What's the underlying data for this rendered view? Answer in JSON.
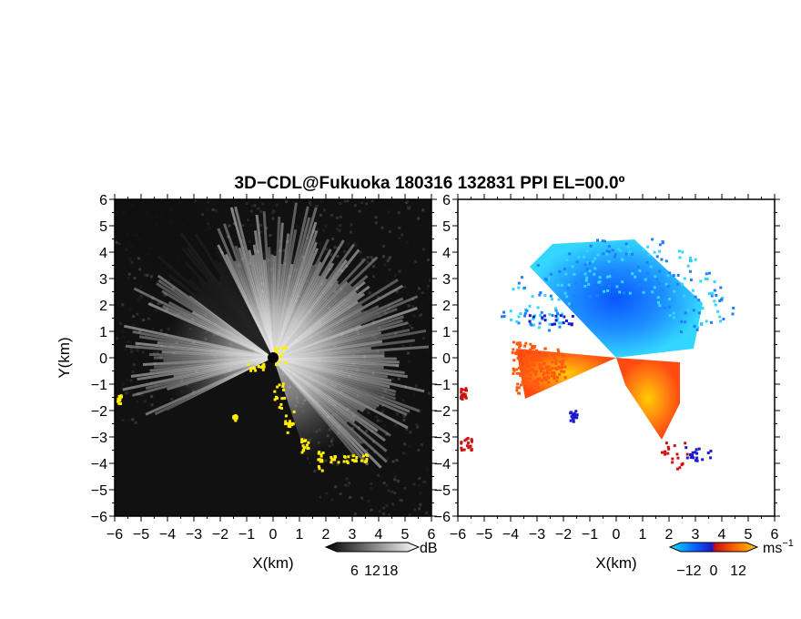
{
  "title": "3D−CDL@Fukuoka 180316 132831 PPI EL=00.0º",
  "chart_data": [
    {
      "type": "heatmap",
      "panel": "reflectivity",
      "xlabel": "X(km)",
      "ylabel": "Y(km)",
      "xlim": [
        -6,
        6
      ],
      "ylim": [
        -6,
        6
      ],
      "x_ticks": [
        "−6",
        "−5",
        "−4",
        "−3",
        "−2",
        "−1",
        "0",
        "1",
        "2",
        "3",
        "4",
        "5",
        "6"
      ],
      "y_ticks": [
        "6",
        "5",
        "4",
        "3",
        "2",
        "1",
        "0",
        "−1",
        "−2",
        "−3",
        "−4",
        "−5",
        "−6"
      ],
      "colorbar": {
        "label": "dB",
        "ticks": [
          "6",
          "12",
          "18"
        ],
        "tick_values": [
          6,
          12,
          18
        ],
        "range": [
          0,
          24
        ],
        "colors": [
          "#000000",
          "#ffffff"
        ]
      },
      "background_color": "#111111",
      "clutter_color": "#ffee00"
    },
    {
      "type": "heatmap",
      "panel": "doppler_velocity",
      "xlabel": "X(km)",
      "xlim": [
        -6,
        6
      ],
      "ylim": [
        -6,
        6
      ],
      "x_ticks": [
        "−6",
        "−5",
        "−4",
        "−3",
        "−2",
        "−1",
        "0",
        "1",
        "2",
        "3",
        "4",
        "5",
        "6"
      ],
      "y_ticks": [
        "6",
        "5",
        "4",
        "3",
        "2",
        "1",
        "0",
        "−1",
        "−2",
        "−3",
        "−4",
        "−5",
        "−6"
      ],
      "colorbar": {
        "label": "ms",
        "label_superscript": "−1",
        "ticks": [
          "−12",
          "0",
          "12"
        ],
        "tick_values": [
          -12,
          0,
          12
        ],
        "range": [
          -16,
          16
        ],
        "colors": [
          "#00e5ff",
          "#0a5cff",
          "#1a1acc",
          "#cc1111",
          "#ff6600",
          "#ffcc00"
        ]
      },
      "approaching_color": "#1e7fff",
      "receding_color": "#ff5a10"
    }
  ]
}
